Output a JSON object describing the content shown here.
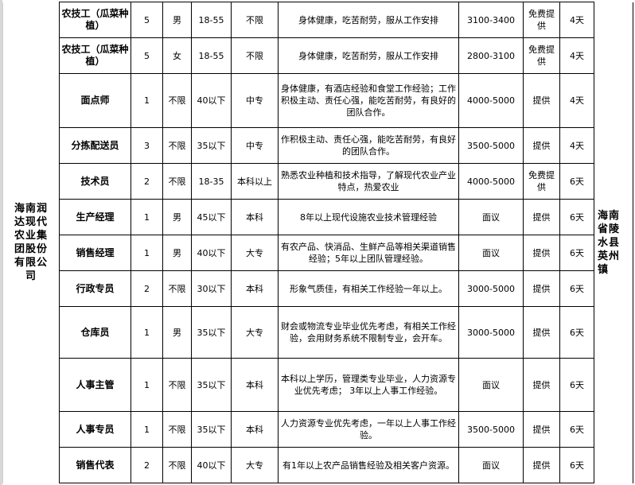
{
  "company": "海南润达现代农业集团股份有限公司",
  "location": "海南省陵水县英州镇",
  "rows": [
    {
      "position": "农技工（瓜菜种植）",
      "count": "5",
      "gender": "男",
      "age": "18-55",
      "education": "不限",
      "requirements": "身体健康，吃苦耐劳，服从工作安排",
      "salary": "3100-3400",
      "accommodation": "免费提供",
      "rest": "4天"
    },
    {
      "position": "农技工（瓜菜种植）",
      "count": "5",
      "gender": "女",
      "age": "18-55",
      "education": "不限",
      "requirements": "身体健康，吃苦耐劳，服从工作安排",
      "salary": "2800-3100",
      "accommodation": "免费提供",
      "rest": "4天"
    },
    {
      "position": "面点师",
      "count": "1",
      "gender": "不限",
      "age": "40以下",
      "education": "中专",
      "requirements": "身体健康，有酒店经验和食堂工作经验；工作积极主动、责任心强，能吃苦耐劳，有良好的团队合作。",
      "salary": "4000-5000",
      "accommodation": "提供",
      "rest": "4天"
    },
    {
      "position": "分拣配送员",
      "count": "3",
      "gender": "不限",
      "age": "35以下",
      "education": "中专",
      "requirements": "作积极主动、责任心强，能吃苦耐劳，有良好的团队合作。",
      "salary": "3500-5000",
      "accommodation": "提供",
      "rest": "4天"
    },
    {
      "position": "技术员",
      "count": "2",
      "gender": "不限",
      "age": "18-35",
      "education": "本科以上",
      "requirements": "熟悉农业种植和技术指导，了解现代农业产业特点，热爱农业",
      "salary": "4000-5000",
      "accommodation": "免费提供",
      "rest": "6天"
    },
    {
      "position": "生产经理",
      "count": "1",
      "gender": "男",
      "age": "45以下",
      "education": "本科",
      "requirements": "8年以上现代设施农业技术管理经验",
      "salary": "面议",
      "accommodation": "提供",
      "rest": "6天"
    },
    {
      "position": "销售经理",
      "count": "1",
      "gender": "男",
      "age": "40以下",
      "education": "大专",
      "requirements": "有农产品、快消品、生鲜产品等相关渠道销售经验；5年以上团队管理经验。",
      "salary": "面议",
      "accommodation": "提供",
      "rest": "6天"
    },
    {
      "position": "行政专员",
      "count": "2",
      "gender": "不限",
      "age": "30以下",
      "education": "本科",
      "requirements": "形象气质佳，有相关工作经验一年以上。",
      "salary": "3000-5000",
      "accommodation": "提供",
      "rest": "6天"
    },
    {
      "position": "仓库员",
      "count": "1",
      "gender": "男",
      "age": "35以下",
      "education": "大专",
      "requirements": "财会或物流专业毕业优先考虑，有相关工作经验，会用财务系统不限制专业，会开车。",
      "salary": "3000-5000",
      "accommodation": "提供",
      "rest": "6天"
    },
    {
      "position": "人事主管",
      "count": "1",
      "gender": "不限",
      "age": "35以下",
      "education": "本科",
      "requirements": "本科以上学历，管理类专业毕业，人力资源专业优先考虑； 3年以上人事工作经验。",
      "salary": "面议",
      "accommodation": "提供",
      "rest": "6天"
    },
    {
      "position": "人事专员",
      "count": "1",
      "gender": "不限",
      "age": "35以下",
      "education": "本科",
      "requirements": "人力资源专业优先考虑，一年以上人事工作经验。",
      "salary": "3500-5000",
      "accommodation": "提供",
      "rest": "6天"
    },
    {
      "position": "销售代表",
      "count": "2",
      "gender": "不限",
      "age": "40以下",
      "education": "大专",
      "requirements": "有1年以上农产品销售经验及相关客户资源。",
      "salary": "面议",
      "accommodation": "提供",
      "rest": "6天"
    }
  ]
}
